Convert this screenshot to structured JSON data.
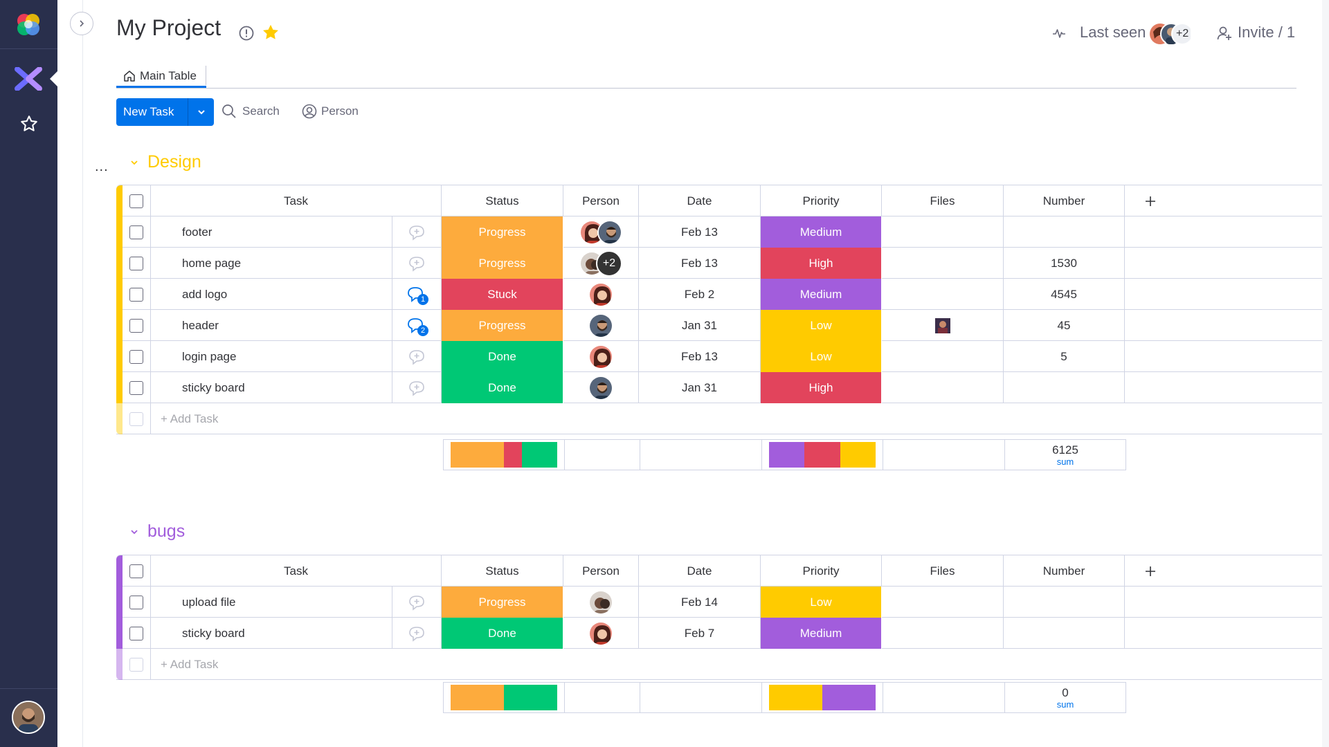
{
  "board": {
    "title": "My Project",
    "last_seen_label": "Last seen",
    "last_seen_more": "+2",
    "invite_label": "Invite / 1"
  },
  "icons": {
    "logo": "monday-color-logo-icon",
    "apps": "workspace-x-logo-icon",
    "favorites": "star-outline-icon",
    "collapse": "chevron-right-icon",
    "info": "info-circle-icon",
    "favorite_board": "star-filled-icon",
    "activity": "activity-pulse-icon",
    "invite": "add-person-icon",
    "home": "home-icon",
    "search": "search-icon",
    "person": "person-circle-icon",
    "dropdown": "chevron-down-icon",
    "updates": "chat-bubble-plus-icon",
    "add_column": "plus-icon"
  },
  "tabs": {
    "main_table": "Main Table"
  },
  "toolbar": {
    "new_task": "New Task",
    "search": "Search",
    "person": "Person"
  },
  "group_menu_label": "...",
  "columns": {
    "task": "Task",
    "status": "Status",
    "person": "Person",
    "date": "Date",
    "priority": "Priority",
    "files": "Files",
    "number": "Number",
    "add": "+"
  },
  "colors": {
    "progress": "#fdab3d",
    "stuck": "#e2445c",
    "done": "#00c875",
    "medium": "#a25ddc",
    "high": "#e2445c",
    "low": "#ffcb00",
    "design_group": "#ffcb00",
    "bugs_group": "#a25ddc",
    "primary": "#0073ea",
    "sidebar": "#292f4c"
  },
  "groups": [
    {
      "title": "Design",
      "color": "#ffcb00",
      "add_task": "+ Add Task",
      "rows": [
        {
          "task": "footer",
          "updates": "",
          "status": "Progress",
          "status_color": "#fdab3d",
          "people": [
            "woman-red",
            "man-beard"
          ],
          "people_more": "",
          "date": "Feb 13",
          "priority": "Medium",
          "priority_color": "#a25ddc",
          "file": false,
          "number": ""
        },
        {
          "task": "home page",
          "updates": "",
          "status": "Progress",
          "status_color": "#fdab3d",
          "people": [
            "man-dark"
          ],
          "people_more": "+2",
          "date": "Feb 13",
          "priority": "High",
          "priority_color": "#e2445c",
          "file": false,
          "number": "1530"
        },
        {
          "task": "add logo",
          "updates": "1",
          "status": "Stuck",
          "status_color": "#e2445c",
          "people": [
            "woman-red"
          ],
          "people_more": "",
          "date": "Feb 2",
          "priority": "Medium",
          "priority_color": "#a25ddc",
          "file": false,
          "number": "4545"
        },
        {
          "task": "header",
          "updates": "2",
          "status": "Progress",
          "status_color": "#fdab3d",
          "people": [
            "man-beard"
          ],
          "people_more": "",
          "date": "Jan 31",
          "priority": "Low",
          "priority_color": "#ffcb00",
          "file": true,
          "number": "45"
        },
        {
          "task": "login page",
          "updates": "",
          "status": "Done",
          "status_color": "#00c875",
          "people": [
            "woman-red"
          ],
          "people_more": "",
          "date": "Feb 13",
          "priority": "Low",
          "priority_color": "#ffcb00",
          "file": false,
          "number": "5"
        },
        {
          "task": "sticky board",
          "updates": "",
          "status": "Done",
          "status_color": "#00c875",
          "people": [
            "man-beard"
          ],
          "people_more": "",
          "date": "Jan 31",
          "priority": "High",
          "priority_color": "#e2445c",
          "file": false,
          "number": ""
        }
      ],
      "summary": {
        "status_bar": [
          {
            "color": "#fdab3d",
            "share": 0.5
          },
          {
            "color": "#e2445c",
            "share": 0.1667
          },
          {
            "color": "#00c875",
            "share": 0.3333
          }
        ],
        "priority_bar": [
          {
            "color": "#a25ddc",
            "share": 0.3333
          },
          {
            "color": "#e2445c",
            "share": 0.3333
          },
          {
            "color": "#ffcb00",
            "share": 0.3334
          }
        ],
        "number_value": "6125",
        "number_label": "sum"
      }
    },
    {
      "title": "bugs",
      "color": "#a25ddc",
      "add_task": "+ Add Task",
      "rows": [
        {
          "task": "upload file",
          "updates": "",
          "status": "Progress",
          "status_color": "#fdab3d",
          "people": [
            "man-dark"
          ],
          "people_more": "",
          "date": "Feb 14",
          "priority": "Low",
          "priority_color": "#ffcb00",
          "file": false,
          "number": ""
        },
        {
          "task": "sticky board",
          "updates": "",
          "status": "Done",
          "status_color": "#00c875",
          "people": [
            "woman-red"
          ],
          "people_more": "",
          "date": "Feb 7",
          "priority": "Medium",
          "priority_color": "#a25ddc",
          "file": false,
          "number": ""
        }
      ],
      "summary": {
        "status_bar": [
          {
            "color": "#fdab3d",
            "share": 0.5
          },
          {
            "color": "#00c875",
            "share": 0.5
          }
        ],
        "priority_bar": [
          {
            "color": "#ffcb00",
            "share": 0.5
          },
          {
            "color": "#a25ddc",
            "share": 0.5
          }
        ],
        "number_value": "0",
        "number_label": "sum"
      }
    }
  ]
}
